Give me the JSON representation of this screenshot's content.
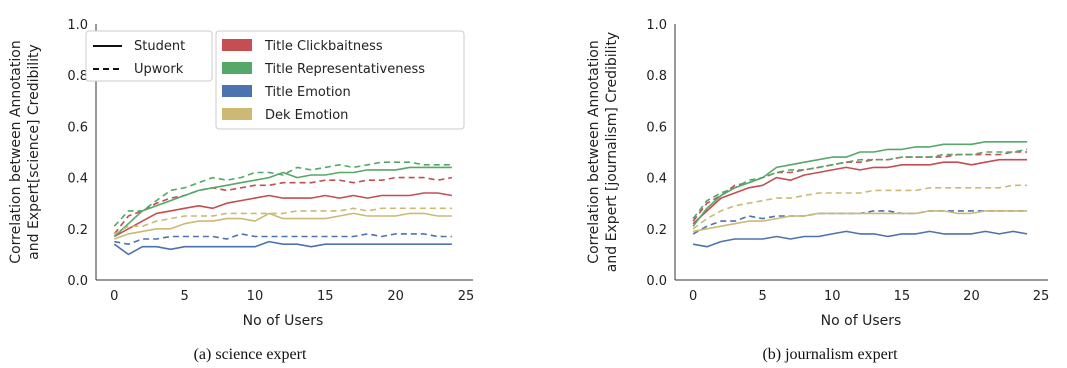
{
  "colors": {
    "title_clickbaitness": "#c44e52",
    "title_representativeness": "#55a868",
    "title_emotion": "#4c72b0",
    "dek_emotion": "#ccb974"
  },
  "chart_data": [
    {
      "type": "line",
      "caption": "(a) science expert",
      "xlabel": "No of Users",
      "ylabel": "Correlation between Annotation and Expert[science] Credibility",
      "ylabel_lines": [
        "Correlation between Annotation",
        "and Expert[science] Credibility"
      ],
      "xlim": [
        -1.3,
        25.5
      ],
      "ylim": [
        0,
        1.0
      ],
      "xticks": [
        0,
        5,
        10,
        15,
        20,
        25
      ],
      "yticks": [
        0.0,
        0.2,
        0.4,
        0.6,
        0.8,
        1.0
      ],
      "ytick_labels": [
        "0.0",
        "0.2",
        "0.4",
        "0.6",
        "0.8",
        "1.0"
      ],
      "legend_style": {
        "position": "top-left",
        "items": [
          {
            "label": "Student",
            "dash": "solid"
          },
          {
            "label": "Upwork",
            "dash": "dashed"
          }
        ]
      },
      "legend_series": {
        "position": "top-center",
        "items": [
          "Title Clickbaitness",
          "Title Representativeness",
          "Title Emotion",
          "Dek Emotion"
        ]
      },
      "x": [
        0,
        1,
        2,
        3,
        4,
        5,
        6,
        7,
        8,
        9,
        10,
        11,
        12,
        13,
        14,
        15,
        16,
        17,
        18,
        19,
        20,
        21,
        22,
        23,
        24
      ],
      "series": [
        {
          "name": "Title Clickbaitness",
          "style": "Student",
          "color": "title_clickbaitness",
          "values": [
            0.17,
            0.2,
            0.23,
            0.26,
            0.27,
            0.28,
            0.29,
            0.28,
            0.3,
            0.31,
            0.32,
            0.33,
            0.32,
            0.32,
            0.32,
            0.33,
            0.32,
            0.33,
            0.32,
            0.33,
            0.33,
            0.33,
            0.34,
            0.34,
            0.33
          ]
        },
        {
          "name": "Title Clickbaitness",
          "style": "Upwork",
          "color": "title_clickbaitness",
          "values": [
            0.18,
            0.25,
            0.27,
            0.3,
            0.32,
            0.33,
            0.35,
            0.36,
            0.35,
            0.36,
            0.37,
            0.37,
            0.38,
            0.38,
            0.38,
            0.39,
            0.39,
            0.38,
            0.39,
            0.39,
            0.4,
            0.4,
            0.4,
            0.39,
            0.4
          ]
        },
        {
          "name": "Title Representativeness",
          "style": "Student",
          "color": "title_representativeness",
          "values": [
            0.17,
            0.22,
            0.27,
            0.29,
            0.31,
            0.33,
            0.35,
            0.36,
            0.37,
            0.38,
            0.39,
            0.4,
            0.42,
            0.4,
            0.41,
            0.41,
            0.42,
            0.42,
            0.43,
            0.43,
            0.43,
            0.44,
            0.44,
            0.44,
            0.44
          ]
        },
        {
          "name": "Title Representativeness",
          "style": "Upwork",
          "color": "title_representativeness",
          "values": [
            0.21,
            0.27,
            0.27,
            0.31,
            0.35,
            0.36,
            0.38,
            0.4,
            0.39,
            0.4,
            0.42,
            0.42,
            0.41,
            0.44,
            0.43,
            0.44,
            0.45,
            0.44,
            0.45,
            0.46,
            0.46,
            0.46,
            0.45,
            0.45,
            0.45
          ]
        },
        {
          "name": "Title Emotion",
          "style": "Student",
          "color": "title_emotion",
          "values": [
            0.14,
            0.1,
            0.13,
            0.13,
            0.12,
            0.13,
            0.13,
            0.13,
            0.13,
            0.13,
            0.13,
            0.15,
            0.14,
            0.14,
            0.13,
            0.14,
            0.14,
            0.14,
            0.14,
            0.14,
            0.14,
            0.14,
            0.14,
            0.14,
            0.14
          ]
        },
        {
          "name": "Title Emotion",
          "style": "Upwork",
          "color": "title_emotion",
          "values": [
            0.15,
            0.14,
            0.16,
            0.16,
            0.17,
            0.17,
            0.17,
            0.17,
            0.16,
            0.18,
            0.17,
            0.17,
            0.17,
            0.17,
            0.17,
            0.17,
            0.17,
            0.17,
            0.18,
            0.17,
            0.18,
            0.18,
            0.18,
            0.17,
            0.17
          ]
        },
        {
          "name": "Dek Emotion",
          "style": "Student",
          "color": "dek_emotion",
          "values": [
            0.16,
            0.18,
            0.19,
            0.2,
            0.2,
            0.22,
            0.23,
            0.23,
            0.24,
            0.24,
            0.23,
            0.26,
            0.24,
            0.24,
            0.24,
            0.24,
            0.25,
            0.26,
            0.25,
            0.25,
            0.25,
            0.26,
            0.26,
            0.25,
            0.25
          ]
        },
        {
          "name": "Dek Emotion",
          "style": "Upwork",
          "color": "dek_emotion",
          "values": [
            0.18,
            0.21,
            0.21,
            0.23,
            0.24,
            0.25,
            0.25,
            0.25,
            0.26,
            0.26,
            0.26,
            0.26,
            0.26,
            0.27,
            0.27,
            0.27,
            0.27,
            0.28,
            0.27,
            0.28,
            0.28,
            0.28,
            0.28,
            0.28,
            0.28
          ]
        }
      ]
    },
    {
      "type": "line",
      "caption": "(b) journalism expert",
      "xlabel": "No of Users",
      "ylabel": "Correlation between Annotation and Expert [journalism] Credibility",
      "ylabel_lines": [
        "Correlation between Annotation",
        "and Expert [journalism] Credibility"
      ],
      "xlim": [
        -1.3,
        25.5
      ],
      "ylim": [
        0,
        1.0
      ],
      "xticks": [
        0,
        5,
        10,
        15,
        20,
        25
      ],
      "yticks": [
        0.0,
        0.2,
        0.4,
        0.6,
        0.8,
        1.0
      ],
      "ytick_labels": [
        "0.0",
        "0.2",
        "0.4",
        "0.6",
        "0.8",
        "1.0"
      ],
      "x": [
        0,
        1,
        2,
        3,
        4,
        5,
        6,
        7,
        8,
        9,
        10,
        11,
        12,
        13,
        14,
        15,
        16,
        17,
        18,
        19,
        20,
        21,
        22,
        23,
        24
      ],
      "series": [
        {
          "name": "Title Clickbaitness",
          "style": "Student",
          "color": "title_clickbaitness",
          "values": [
            0.22,
            0.27,
            0.32,
            0.34,
            0.36,
            0.37,
            0.4,
            0.39,
            0.41,
            0.42,
            0.43,
            0.44,
            0.43,
            0.44,
            0.44,
            0.45,
            0.45,
            0.45,
            0.46,
            0.46,
            0.45,
            0.46,
            0.47,
            0.47,
            0.47
          ]
        },
        {
          "name": "Title Clickbaitness",
          "style": "Upwork",
          "color": "title_clickbaitness",
          "values": [
            0.23,
            0.3,
            0.33,
            0.37,
            0.38,
            0.4,
            0.42,
            0.42,
            0.43,
            0.44,
            0.45,
            0.46,
            0.46,
            0.47,
            0.47,
            0.48,
            0.48,
            0.48,
            0.48,
            0.49,
            0.49,
            0.49,
            0.49,
            0.5,
            0.5
          ]
        },
        {
          "name": "Title Representativeness",
          "style": "Student",
          "color": "title_representativeness",
          "values": [
            0.21,
            0.28,
            0.33,
            0.36,
            0.38,
            0.4,
            0.44,
            0.45,
            0.46,
            0.47,
            0.48,
            0.48,
            0.5,
            0.5,
            0.51,
            0.51,
            0.52,
            0.52,
            0.53,
            0.53,
            0.53,
            0.54,
            0.54,
            0.54,
            0.54
          ]
        },
        {
          "name": "Title Representativeness",
          "style": "Upwork",
          "color": "title_representativeness",
          "values": [
            0.24,
            0.31,
            0.34,
            0.36,
            0.39,
            0.4,
            0.42,
            0.43,
            0.43,
            0.44,
            0.45,
            0.46,
            0.47,
            0.47,
            0.47,
            0.48,
            0.48,
            0.48,
            0.49,
            0.49,
            0.49,
            0.5,
            0.5,
            0.5,
            0.51
          ]
        },
        {
          "name": "Title Emotion",
          "style": "Student",
          "color": "title_emotion",
          "values": [
            0.14,
            0.13,
            0.15,
            0.16,
            0.16,
            0.16,
            0.17,
            0.16,
            0.17,
            0.17,
            0.18,
            0.19,
            0.18,
            0.18,
            0.17,
            0.18,
            0.18,
            0.19,
            0.18,
            0.18,
            0.18,
            0.19,
            0.18,
            0.19,
            0.18
          ]
        },
        {
          "name": "Title Emotion",
          "style": "Upwork",
          "color": "title_emotion",
          "values": [
            0.18,
            0.21,
            0.23,
            0.23,
            0.25,
            0.24,
            0.25,
            0.25,
            0.25,
            0.26,
            0.26,
            0.26,
            0.26,
            0.27,
            0.27,
            0.26,
            0.26,
            0.27,
            0.27,
            0.27,
            0.27,
            0.27,
            0.27,
            0.27,
            0.27
          ]
        },
        {
          "name": "Dek Emotion",
          "style": "Student",
          "color": "dek_emotion",
          "values": [
            0.19,
            0.2,
            0.21,
            0.22,
            0.23,
            0.23,
            0.24,
            0.25,
            0.25,
            0.26,
            0.26,
            0.26,
            0.26,
            0.26,
            0.26,
            0.26,
            0.26,
            0.27,
            0.27,
            0.26,
            0.26,
            0.27,
            0.27,
            0.27,
            0.27
          ]
        },
        {
          "name": "Dek Emotion",
          "style": "Upwork",
          "color": "dek_emotion",
          "values": [
            0.2,
            0.24,
            0.27,
            0.29,
            0.3,
            0.31,
            0.32,
            0.32,
            0.33,
            0.34,
            0.34,
            0.34,
            0.34,
            0.35,
            0.35,
            0.35,
            0.35,
            0.36,
            0.36,
            0.36,
            0.36,
            0.36,
            0.36,
            0.37,
            0.37
          ]
        }
      ]
    }
  ]
}
